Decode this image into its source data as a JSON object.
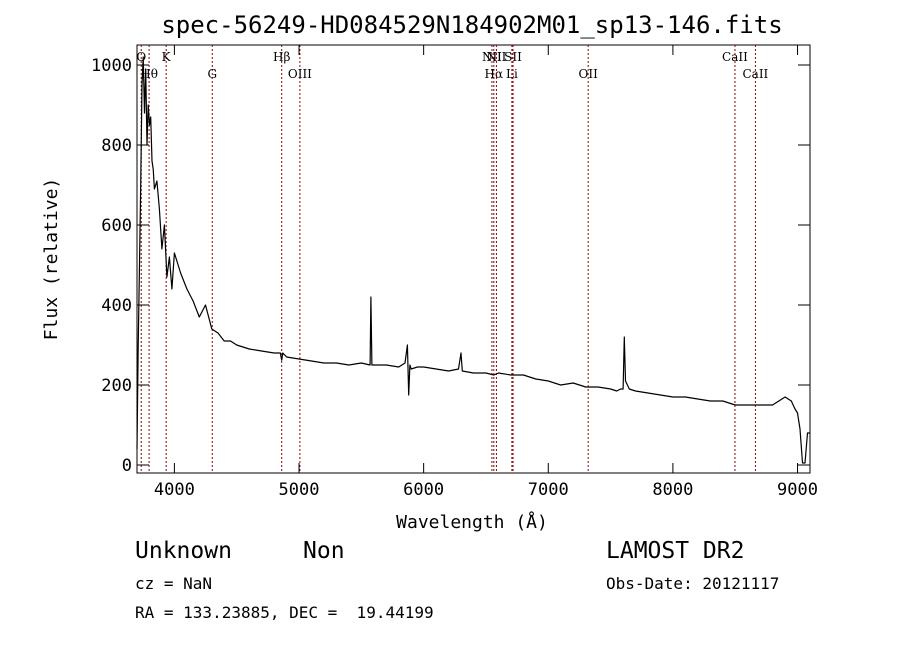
{
  "chart_data": {
    "type": "line",
    "title": "spec-56249-HD084529N184902M01_sp13-146.fits",
    "xlabel": "Wavelength (Å)",
    "ylabel": "Flux (relative)",
    "xlim": [
      3700,
      9100
    ],
    "ylim": [
      -20,
      1050
    ],
    "xticks": [
      4000,
      5000,
      6000,
      7000,
      8000,
      9000
    ],
    "yticks": [
      0,
      200,
      400,
      600,
      800,
      1000
    ],
    "grid": false,
    "series": [
      {
        "x": [
          3700,
          3710,
          3720,
          3730,
          3740,
          3750,
          3760,
          3770,
          3780,
          3790,
          3800,
          3810,
          3820,
          3830,
          3840,
          3860,
          3880,
          3900,
          3920,
          3940,
          3960,
          3980,
          4000,
          4050,
          4100,
          4150,
          4200,
          4250,
          4300,
          4350,
          4400,
          4450,
          4500,
          4600,
          4700,
          4800,
          4850,
          4861,
          4870,
          4900,
          5000,
          5100,
          5200,
          5300,
          5400,
          5500,
          5570,
          5577,
          5585,
          5700,
          5800,
          5850,
          5870,
          5880,
          5890,
          5900,
          5950,
          6000,
          6100,
          6200,
          6280,
          6300,
          6310,
          6400,
          6500,
          6563,
          6600,
          6700,
          6800,
          6900,
          7000,
          7100,
          7200,
          7300,
          7400,
          7500,
          7550,
          7580,
          7600,
          7610,
          7620,
          7650,
          7700,
          7800,
          7900,
          8000,
          8100,
          8200,
          8300,
          8400,
          8500,
          8600,
          8700,
          8800,
          8850,
          8900,
          8950,
          8980,
          9000,
          9020,
          9040,
          9060,
          9080,
          9100
        ],
        "y": [
          40,
          300,
          500,
          700,
          950,
          1020,
          880,
          990,
          800,
          900,
          850,
          870,
          760,
          740,
          690,
          710,
          640,
          540,
          600,
          470,
          520,
          440,
          530,
          480,
          440,
          410,
          370,
          400,
          340,
          330,
          310,
          310,
          300,
          290,
          285,
          280,
          280,
          262,
          280,
          270,
          265,
          260,
          255,
          255,
          250,
          255,
          250,
          420,
          250,
          250,
          245,
          255,
          300,
          175,
          250,
          240,
          245,
          245,
          240,
          235,
          240,
          280,
          235,
          230,
          230,
          225,
          230,
          225,
          225,
          215,
          210,
          200,
          205,
          195,
          195,
          190,
          185,
          190,
          190,
          320,
          210,
          190,
          185,
          180,
          175,
          170,
          170,
          165,
          160,
          160,
          150,
          150,
          150,
          150,
          160,
          170,
          160,
          140,
          130,
          90,
          5,
          5,
          80,
          80
        ]
      }
    ],
    "lines": [
      {
        "x": 3734,
        "label": "O"
      },
      {
        "x": 3797,
        "label": "Hθ"
      },
      {
        "x": 3934,
        "label": "K"
      },
      {
        "x": 4304,
        "label": "G"
      },
      {
        "x": 4861,
        "label": "Hβ"
      },
      {
        "x": 5007,
        "label": "OIII"
      },
      {
        "x": 6548,
        "label": "NII"
      },
      {
        "x": 6563,
        "label": "Hα"
      },
      {
        "x": 6584,
        "label": "NII"
      },
      {
        "x": 6708,
        "label": "Li"
      },
      {
        "x": 6717,
        "label": "SII"
      },
      {
        "x": 7320,
        "label": "OII"
      },
      {
        "x": 8498,
        "label": "CaII"
      },
      {
        "x": 8662,
        "label": "CaII"
      }
    ],
    "line_color": "#8b0000"
  },
  "info": {
    "class": "Unknown",
    "subclass": "Non",
    "cz": "cz = NaN",
    "coords": "RA = 133.23885, DEC =  19.44199",
    "survey": "LAMOST DR2",
    "obsdate": "Obs-Date: 20121117"
  }
}
